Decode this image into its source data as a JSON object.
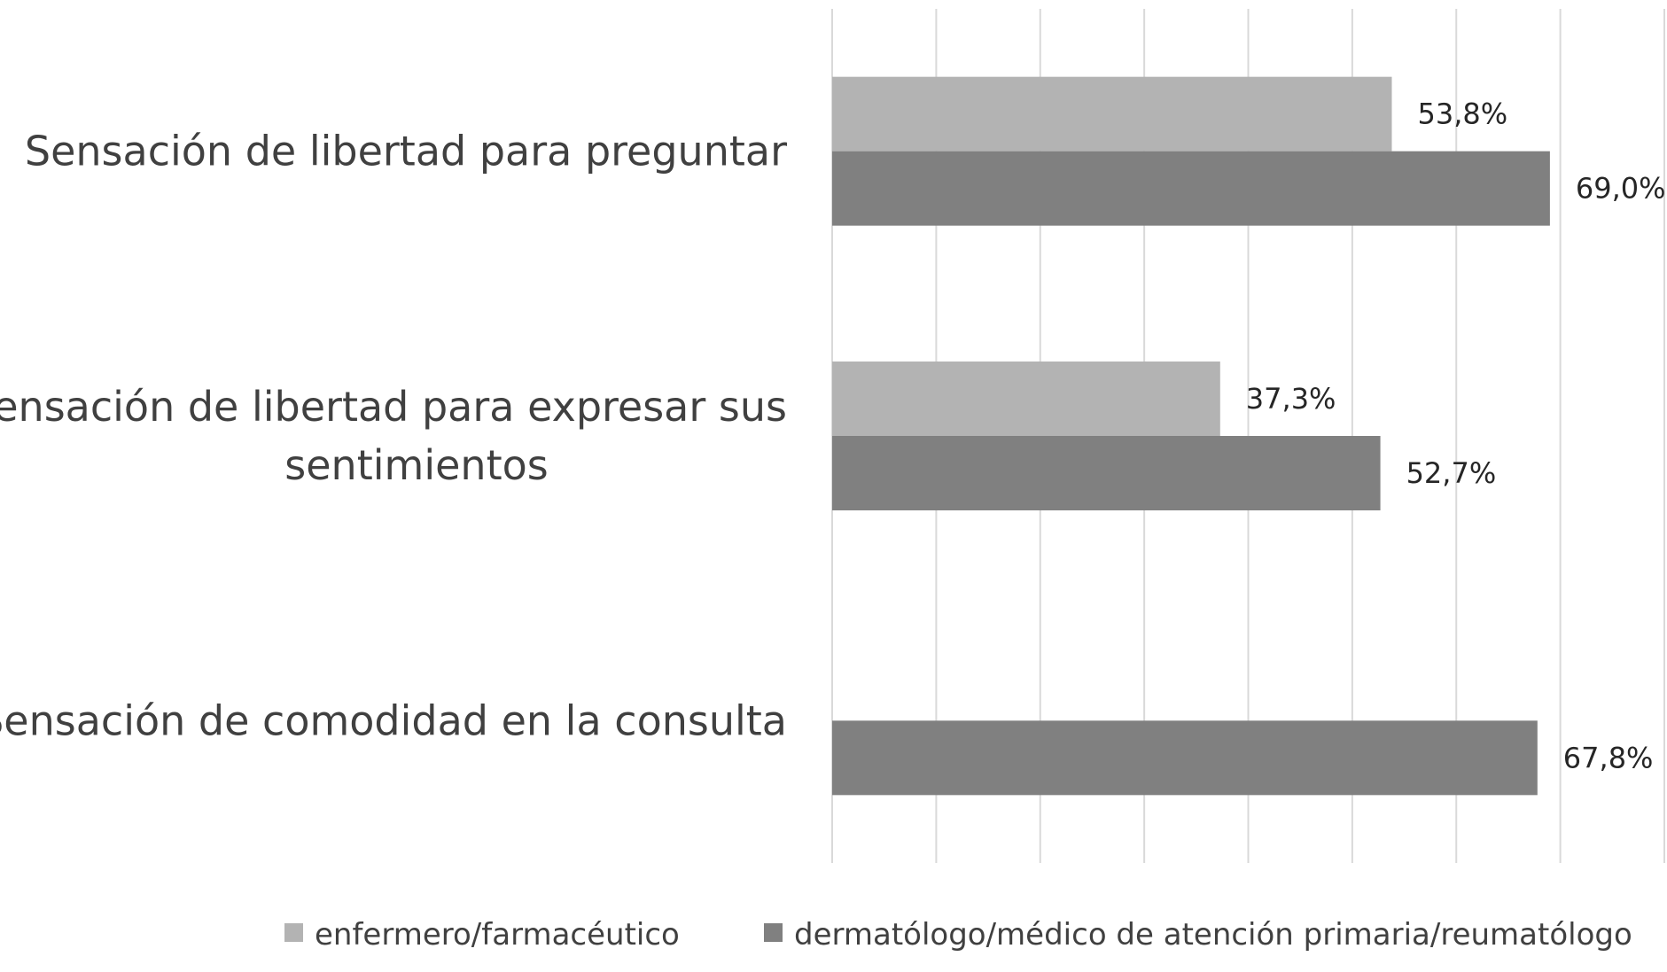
{
  "chart_data": {
    "type": "bar",
    "orientation": "horizontal",
    "categories": [
      [
        "Sensación de libertad para preguntar"
      ],
      [
        "Sensación de libertad para expresar sus",
        "sentimientos"
      ],
      [
        "Sensación de comodidad en la consulta"
      ]
    ],
    "series": [
      {
        "name": "enfermero/farmacéutico",
        "color": "#b3b3b3",
        "values": [
          53.8,
          37.3,
          null
        ],
        "labels": [
          "53,8%",
          "37,3%",
          ""
        ]
      },
      {
        "name": "dermatólogo/médico de atención primaria/reumatólogo",
        "color": "#808080",
        "values": [
          69.0,
          52.7,
          67.8
        ],
        "labels": [
          "69,0%",
          "52,7%",
          "67,8%"
        ]
      }
    ],
    "xlim": [
      0,
      80
    ],
    "grid": true,
    "legend": "bottom"
  }
}
